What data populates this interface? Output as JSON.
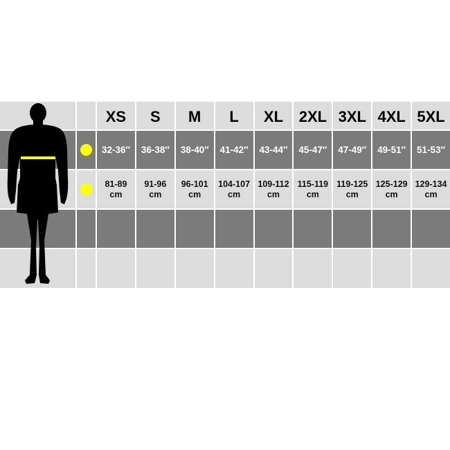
{
  "sizes": [
    "XS",
    "S",
    "M",
    "L",
    "XL",
    "2XL",
    "3XL",
    "4XL",
    "5XL"
  ],
  "chest_inches": [
    "32-36″",
    "36-38″",
    "38-40″",
    "41-42″",
    "43-44″",
    "45-47″",
    "47-49″",
    "49-51″",
    "51-53″"
  ],
  "chest_cm": [
    "81-89",
    "91-96",
    "96-101",
    "104-107",
    "109-112",
    "115-119",
    "119-125",
    "125-129",
    "129-134"
  ],
  "cm_unit": "cm",
  "colors": {
    "marker": "#ffff00",
    "light_row": "#dcdcdc",
    "dark_row": "#7b7b7b",
    "silhouette": "#000000"
  },
  "icons": {
    "figure": "male-silhouette-icon",
    "marker": "yellow-dot-icon"
  }
}
